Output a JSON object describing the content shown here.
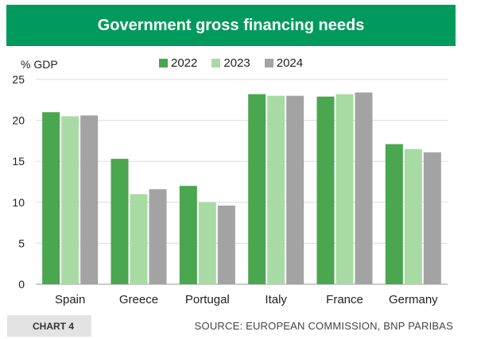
{
  "chart_data": {
    "type": "bar",
    "title": "Government gross financing needs",
    "ylabel": "% GDP",
    "xlabel": "",
    "ylim": [
      0,
      25
    ],
    "yticks": [
      0,
      5,
      10,
      15,
      20,
      25
    ],
    "grid": true,
    "legend_position": "top",
    "categories": [
      "Spain",
      "Greece",
      "Portugal",
      "Italy",
      "France",
      "Germany"
    ],
    "series": [
      {
        "name": "2022",
        "color": "#4aa64f",
        "values": [
          21.0,
          15.3,
          12.0,
          23.2,
          22.9,
          17.1
        ]
      },
      {
        "name": "2023",
        "color": "#a8dba4",
        "values": [
          20.5,
          11.0,
          10.0,
          23.0,
          23.2,
          16.5
        ]
      },
      {
        "name": "2024",
        "color": "#a3a3a3",
        "values": [
          20.6,
          11.6,
          9.6,
          23.0,
          23.4,
          16.1
        ]
      }
    ]
  },
  "footer": {
    "chart_label": "CHART 4",
    "source": "SOURCE: EUROPEAN COMMISSION, BNP PARIBAS"
  }
}
